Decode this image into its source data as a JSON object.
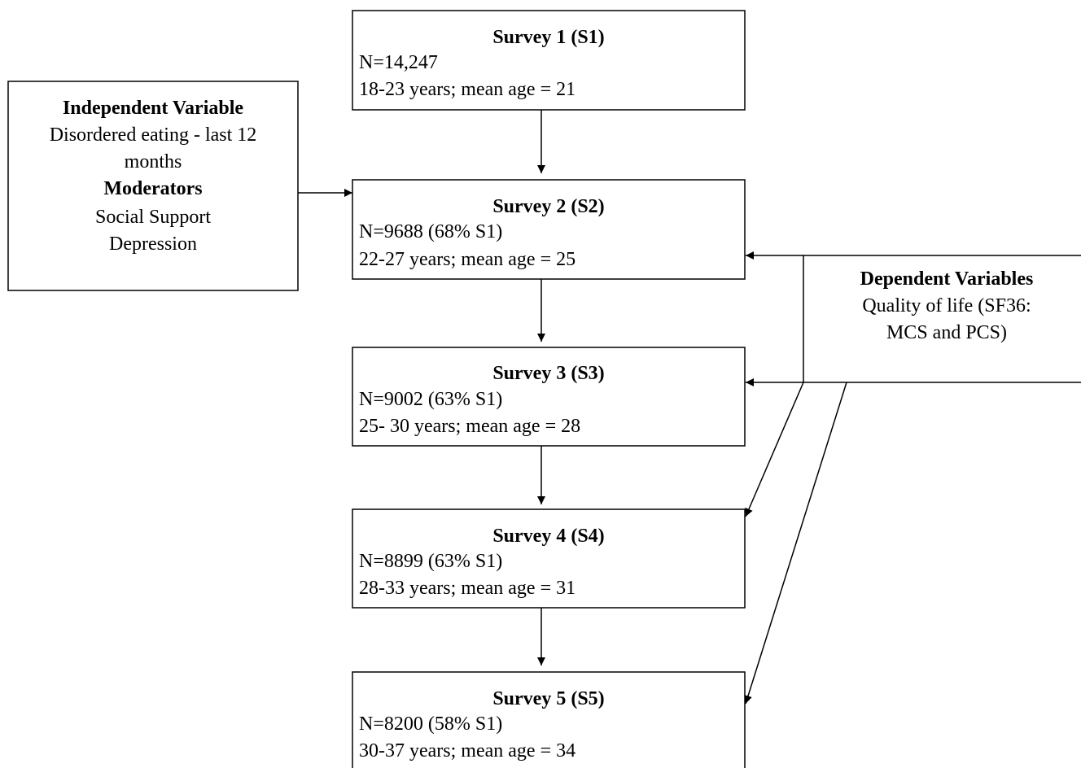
{
  "nodes": [
    {
      "title": "Survey 1 (S1)",
      "lines": [
        "N=14,247",
        "18-23 years; mean age = 21"
      ]
    },
    {
      "title": "Survey 2 (S2)",
      "lines": [
        "N=9688 (68% S1)",
        "22-27 years; mean age = 25"
      ]
    },
    {
      "title": "Survey 3 (S3)",
      "lines": [
        "N=9002 (63% S1)",
        "25- 30 years; mean age = 28"
      ]
    },
    {
      "title": "Survey 4 (S4)",
      "lines": [
        "N=8899 (63% S1)",
        "28-33 years; mean age = 31"
      ]
    },
    {
      "title": "Survey 5 (S5)",
      "lines": [
        "N=8200 (58% S1)",
        "30-37 years; mean age = 34"
      ]
    }
  ],
  "independent": {
    "title": "Independent Variable",
    "lines": [
      "Disordered eating - last 12",
      "months"
    ],
    "subtitle": "Moderators",
    "sublines": [
      "Social Support",
      "Depression"
    ]
  },
  "dependent": {
    "title": "Dependent Variables",
    "lines": [
      "Quality of life (SF36:",
      "MCS and PCS)"
    ]
  }
}
